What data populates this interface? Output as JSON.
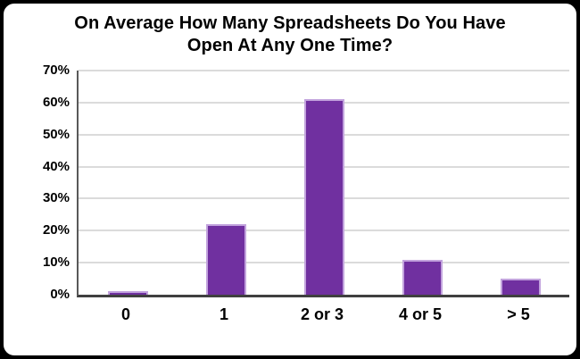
{
  "frame": {
    "outer_background": "#000000",
    "card_background": "#FFFFFF",
    "card_border_color": "#000000"
  },
  "chart_data": {
    "type": "bar",
    "title": "On Average How Many Spreadsheets Do You Have Open At Any One Time?",
    "title_lines": [
      "On Average How Many Spreadsheets Do You Have",
      "Open At Any One Time?"
    ],
    "categories": [
      "0",
      "1",
      "2 or 3",
      "4 or 5",
      "> 5"
    ],
    "values": [
      1,
      22,
      61,
      11,
      5
    ],
    "value_unit": "%",
    "xlabel": "",
    "ylabel": "",
    "ylim": [
      0,
      70
    ],
    "ytick_step": 10,
    "ytick_labels": [
      "0%",
      "10%",
      "20%",
      "30%",
      "40%",
      "50%",
      "60%",
      "70%"
    ],
    "grid": true,
    "legend": "none",
    "colors": {
      "bar_fill": "#7030A0",
      "bar_edge": "#C2A3DD",
      "gridline": "#DBDBDB",
      "y_axis_line": "#595959",
      "x_axis_line": "#404040",
      "text": "#000000"
    }
  }
}
